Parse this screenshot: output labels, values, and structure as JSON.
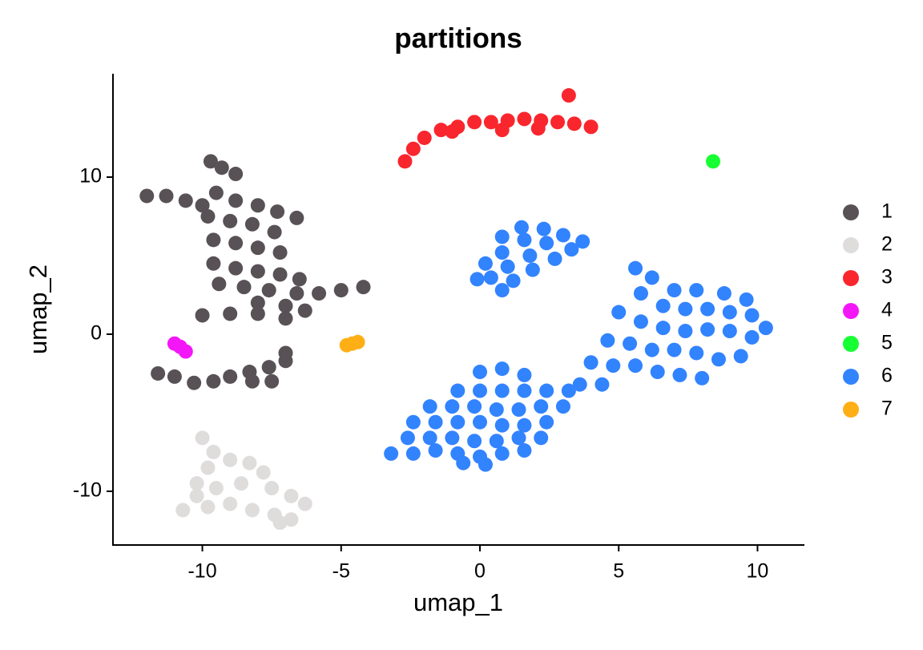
{
  "chart_data": {
    "type": "scatter",
    "title": "partitions",
    "x_label": "umap_1",
    "y_label": "umap_2",
    "xlim": [
      -13.22,
      11.69
    ],
    "ylim": [
      -13.42,
      16.58
    ],
    "xticks": [
      -10,
      -5,
      0,
      5,
      10
    ],
    "yticks": [
      -10,
      0,
      10
    ],
    "series": [
      {
        "name": "1",
        "color": "#585155",
        "x": [
          -9.7,
          -9.3,
          -8.8,
          -12,
          -11.3,
          -10.6,
          -10,
          -9.5,
          -8.8,
          -8,
          -7.3,
          -6.6,
          -9.8,
          -9,
          -8.2,
          -7.4,
          -9.6,
          -8.8,
          -8,
          -7.2,
          -9.6,
          -8.8,
          -8,
          -7.2,
          -6.5,
          -9.4,
          -8.5,
          -7.6,
          -6.6,
          -5.8,
          -5,
          -4.2,
          -8,
          -7,
          -6.3,
          -10,
          -9,
          -8,
          -7,
          -11.6,
          -11,
          -10.3,
          -9.6,
          -9,
          -8.3,
          -7.6,
          -7,
          -7.5,
          -8.2,
          -7
        ],
        "y": [
          11,
          10.6,
          10.2,
          8.8,
          8.8,
          8.5,
          8.2,
          9,
          8.5,
          8.2,
          7.8,
          7.4,
          7.5,
          7.2,
          7,
          6.5,
          6,
          5.8,
          5.5,
          5.2,
          4.5,
          4.2,
          4,
          3.8,
          3.5,
          3.2,
          3,
          2.8,
          2.6,
          2.6,
          2.8,
          3,
          2,
          1.8,
          1.5,
          1.2,
          1.3,
          1.3,
          1,
          -2.5,
          -2.7,
          -3.1,
          -3,
          -2.7,
          -2.4,
          -2.1,
          -1.7,
          -3,
          -3,
          -1.2
        ]
      },
      {
        "name": "2",
        "color": "#dfdcdc",
        "x": [
          -10,
          -9.6,
          -9.8,
          -9,
          -8.3,
          -7.8,
          -10.2,
          -9.5,
          -8.6,
          -7.5,
          -6.8,
          -6.3,
          -10.7,
          -9.8,
          -9,
          -8.2,
          -7.4,
          -6.8,
          -10.2,
          -7.2
        ],
        "y": [
          -6.6,
          -7.5,
          -8.5,
          -8,
          -8.2,
          -8.8,
          -9.5,
          -9.8,
          -9.5,
          -9.8,
          -10.3,
          -10.8,
          -11.2,
          -11,
          -10.8,
          -11.2,
          -11.5,
          -11.8,
          -10.3,
          -12
        ]
      },
      {
        "name": "3",
        "color": "#f9262e",
        "x": [
          -2.7,
          -2.4,
          -2,
          -1.4,
          -0.8,
          -0.2,
          0.4,
          1,
          1.6,
          2.2,
          2.8,
          3.4,
          4,
          -1,
          0.8,
          2.1,
          3.2
        ],
        "y": [
          11,
          11.8,
          12.5,
          13,
          13.2,
          13.5,
          13.5,
          13.6,
          13.7,
          13.6,
          13.5,
          13.4,
          13.2,
          12.9,
          13,
          13.1,
          15.2
        ]
      },
      {
        "name": "4",
        "color": "#f316f7",
        "x": [
          -11,
          -10.8,
          -10.6
        ],
        "y": [
          -0.6,
          -0.8,
          -1.1
        ]
      },
      {
        "name": "5",
        "color": "#16ff32",
        "x": [
          8.4
        ],
        "y": [
          11
        ]
      },
      {
        "name": "6",
        "color": "#3283fe",
        "x": [
          1.5,
          2.3,
          3,
          3.7,
          0.8,
          1.6,
          2.4,
          3.3,
          0.8,
          1.8,
          2.7,
          0.2,
          1,
          1.9,
          0.4,
          1.2,
          0.8,
          -0.1,
          5.6,
          6.2,
          7,
          7.8,
          8.8,
          9.6,
          5.8,
          6.6,
          7.4,
          8.2,
          9,
          9.8,
          10.3,
          5,
          5.8,
          6.6,
          7.4,
          8.2,
          9,
          9.8,
          4.6,
          5.4,
          6.2,
          7,
          7.8,
          8.6,
          9.4,
          4,
          4.8,
          5.6,
          6.4,
          7.2,
          8,
          3.6,
          4.4,
          0.8,
          0,
          1.6,
          -0.8,
          0,
          0.8,
          1.6,
          2.4,
          3.2,
          -1.8,
          -1,
          -0.2,
          0.6,
          1.4,
          2.2,
          3,
          -2.4,
          -1.6,
          -0.8,
          0,
          0.8,
          1.6,
          2.4,
          -2.6,
          -1.8,
          -1,
          -0.2,
          0.6,
          1.4,
          2.2,
          -3.2,
          -2.4,
          -1.6,
          -0.8,
          0,
          0.8,
          1.6,
          -0.6,
          0.2
        ],
        "y": [
          6.8,
          6.7,
          6.3,
          5.9,
          6.2,
          6,
          5.8,
          5.4,
          5.2,
          5,
          4.8,
          4.5,
          4.3,
          4.1,
          3.6,
          3.4,
          2.8,
          3.5,
          4.2,
          3.6,
          2.8,
          2.8,
          2.6,
          2.2,
          2.6,
          1.8,
          1.6,
          1.6,
          1.4,
          1.2,
          0.4,
          1.4,
          0.8,
          0.4,
          0.2,
          0.3,
          0.2,
          -0.2,
          -0.4,
          -0.6,
          -1,
          -1,
          -1.2,
          -1.6,
          -1.4,
          -1.8,
          -2,
          -2,
          -2.4,
          -2.6,
          -2.8,
          -3.2,
          -3.2,
          -2.2,
          -2.4,
          -2.6,
          -3.6,
          -3.6,
          -3.6,
          -3.6,
          -3.6,
          -3.6,
          -4.6,
          -4.6,
          -4.6,
          -4.8,
          -4.8,
          -4.6,
          -4.6,
          -5.6,
          -5.6,
          -5.6,
          -5.6,
          -5.8,
          -5.8,
          -5.6,
          -6.6,
          -6.6,
          -6.6,
          -6.8,
          -6.8,
          -6.6,
          -6.6,
          -7.6,
          -7.6,
          -7.4,
          -7.6,
          -7.8,
          -7.6,
          -7.4,
          -8.2,
          -8.3
        ]
      },
      {
        "name": "7",
        "color": "#feaf16",
        "x": [
          -4.8,
          -4.6,
          -4.4
        ],
        "y": [
          -0.7,
          -0.6,
          -0.5
        ]
      }
    ]
  }
}
